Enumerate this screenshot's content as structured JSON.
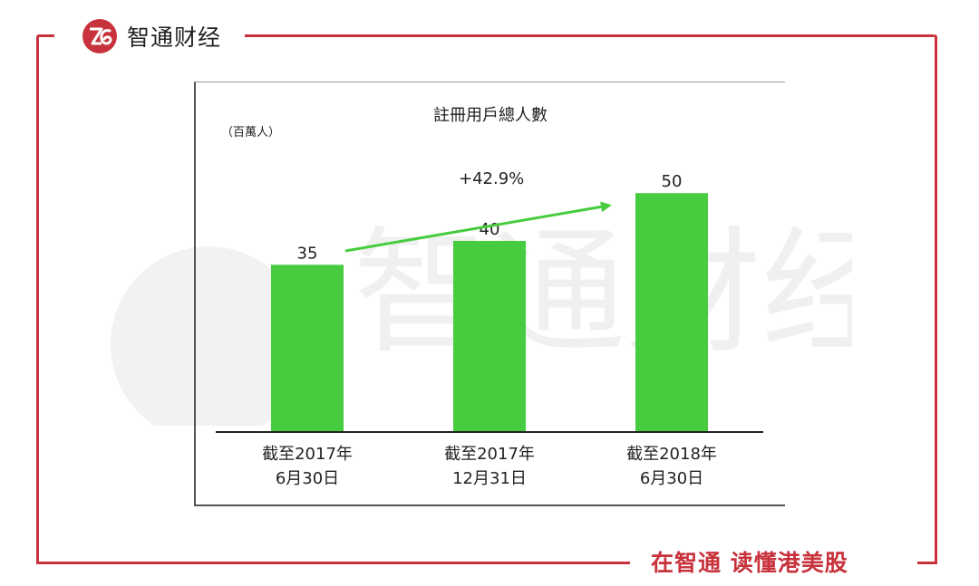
{
  "brand": {
    "name": "智通财经",
    "logo_icon": "zhitong-logo-icon",
    "color": "#c8323c"
  },
  "footer": {
    "slogan": "在智通  读懂港美股"
  },
  "watermark": {
    "text": "智通财经"
  },
  "chart_data": {
    "type": "bar",
    "title": "註冊用戶總人數",
    "ylabel": "（百萬人）",
    "categories": [
      [
        "截至2017年",
        "6月30日"
      ],
      [
        "截至2017年",
        "12月31日"
      ],
      [
        "截至2018年",
        "6月30日"
      ]
    ],
    "values": [
      35,
      40,
      50
    ],
    "data_labels": [
      "35",
      "40",
      "50"
    ],
    "ylim": [
      0,
      60
    ],
    "bar_color": "#46cc3e",
    "grid": false,
    "annotations": [
      {
        "text": "+42.9%",
        "type": "arrow",
        "color": "#46cc3e"
      }
    ]
  }
}
